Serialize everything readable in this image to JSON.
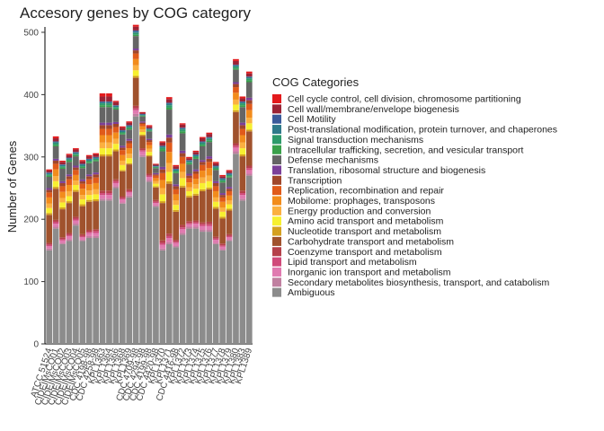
{
  "chart_data": {
    "type": "stacked_bar",
    "title": "Accesory genes by COG category",
    "y_label": "Number of Genes",
    "legend_title": "COG Categories",
    "ylim": [
      0,
      505
    ],
    "yticks": [
      0,
      100,
      200,
      300,
      400,
      500
    ],
    "categories": [
      "ATCC 51524",
      "CIDEIMsCO01",
      "CIDEIMsCO02",
      "CIDEIMsCO03",
      "CIDEIMsCO04",
      "CIDEIMsCO05",
      "CDC 4198-98",
      "CDC 4258-98",
      "KPL1363",
      "KPL1364",
      "KPL1366",
      "KPL1368",
      "KPL1369",
      "CDC 4709-98",
      "CDC 4294-98",
      "CDC 4199-98",
      "CDC 4420-98",
      "KPL1370",
      "KPL1371",
      "CDC 4416-98",
      "KPL1372",
      "KPL1373",
      "KPL1374",
      "KPL1375",
      "KPL1376",
      "KPL1377",
      "KPL1378",
      "KPL1379",
      "KPL1380",
      "KPL1383",
      "KPL1389"
    ],
    "series": [
      {
        "name": "Cell cycle control, cell division, chromosome partitioning",
        "color": "#e31a1c",
        "values": [
          2,
          3,
          2,
          2,
          2,
          2,
          2,
          2,
          5,
          5,
          2,
          2,
          2,
          3,
          1,
          2,
          1,
          2,
          3,
          2,
          2,
          2,
          2,
          2,
          2,
          2,
          2,
          2,
          3,
          3,
          3
        ]
      },
      {
        "name": "Cell wall/membrane/envelope biogenesis",
        "color": "#9b2335",
        "values": [
          3,
          5,
          4,
          4,
          4,
          4,
          4,
          4,
          8,
          8,
          5,
          4,
          4,
          6,
          2,
          3,
          2,
          5,
          6,
          4,
          5,
          3,
          4,
          5,
          5,
          4,
          3,
          3,
          6,
          5,
          5
        ]
      },
      {
        "name": "Cell Motility",
        "color": "#3a5a9a",
        "values": [
          1,
          1,
          1,
          1,
          1,
          1,
          1,
          1,
          1,
          1,
          1,
          1,
          1,
          2,
          1,
          1,
          1,
          1,
          1,
          1,
          1,
          1,
          1,
          1,
          1,
          1,
          1,
          1,
          1,
          1,
          1
        ]
      },
      {
        "name": "Post-translational modification, protein turnover, and chaperones",
        "color": "#2f7a8a",
        "values": [
          2,
          2,
          2,
          2,
          2,
          2,
          2,
          2,
          2,
          2,
          2,
          2,
          2,
          2,
          1,
          1,
          1,
          2,
          3,
          2,
          2,
          2,
          2,
          2,
          2,
          2,
          2,
          2,
          2,
          2,
          2
        ]
      },
      {
        "name": "Signal transduction mechanisms",
        "color": "#2e9a6a",
        "values": [
          2,
          3,
          2,
          2,
          2,
          2,
          2,
          2,
          3,
          3,
          2,
          2,
          2,
          3,
          1,
          2,
          1,
          3,
          4,
          2,
          3,
          2,
          2,
          3,
          3,
          2,
          2,
          2,
          3,
          3,
          3
        ]
      },
      {
        "name": "Intracellular trafficking, secretion, and vesicular transport",
        "color": "#3aa04a",
        "values": [
          2,
          2,
          2,
          2,
          2,
          2,
          2,
          2,
          3,
          3,
          2,
          2,
          2,
          2,
          1,
          1,
          1,
          3,
          3,
          2,
          3,
          2,
          2,
          2,
          2,
          2,
          2,
          2,
          2,
          3,
          3
        ]
      },
      {
        "name": "Defense mechanisms",
        "color": "#656565",
        "values": [
          18,
          20,
          20,
          20,
          15,
          18,
          18,
          18,
          25,
          25,
          20,
          18,
          15,
          20,
          8,
          12,
          8,
          25,
          40,
          18,
          28,
          15,
          17,
          22,
          23,
          18,
          17,
          15,
          20,
          25,
          25
        ]
      },
      {
        "name": "Translation, ribosomal structure and biogenesis",
        "color": "#7b3f99",
        "values": [
          3,
          3,
          3,
          3,
          3,
          3,
          3,
          3,
          4,
          4,
          3,
          3,
          3,
          3,
          2,
          2,
          2,
          4,
          5,
          3,
          4,
          3,
          3,
          3,
          4,
          3,
          3,
          3,
          3,
          4,
          4
        ]
      },
      {
        "name": "Transcription",
        "color": "#a0462a",
        "values": [
          4,
          5,
          5,
          5,
          4,
          4,
          5,
          5,
          6,
          6,
          5,
          4,
          4,
          5,
          2,
          3,
          2,
          6,
          8,
          5,
          6,
          4,
          4,
          5,
          5,
          5,
          4,
          4,
          5,
          6,
          6
        ]
      },
      {
        "name": "Replication, recombination and repair",
        "color": "#e05a1a",
        "values": [
          8,
          9,
          9,
          9,
          8,
          8,
          8,
          9,
          10,
          10,
          9,
          8,
          8,
          9,
          4,
          5,
          4,
          11,
          15,
          8,
          11,
          7,
          8,
          9,
          10,
          8,
          7,
          7,
          9,
          10,
          10
        ]
      },
      {
        "name": "Mobilome: prophages, transposons",
        "color": "#f28c1c",
        "values": [
          10,
          11,
          10,
          10,
          9,
          10,
          10,
          10,
          12,
          12,
          10,
          9,
          9,
          10,
          5,
          6,
          5,
          13,
          18,
          10,
          13,
          8,
          9,
          11,
          12,
          10,
          9,
          8,
          11,
          12,
          12
        ]
      },
      {
        "name": "Energy production and conversion",
        "color": "#fbb040",
        "values": [
          7,
          8,
          7,
          8,
          7,
          7,
          7,
          8,
          9,
          9,
          8,
          7,
          7,
          8,
          4,
          5,
          4,
          10,
          14,
          7,
          10,
          6,
          7,
          9,
          9,
          7,
          7,
          6,
          8,
          9,
          9
        ]
      },
      {
        "name": "Amino acid transport and metabolism",
        "color": "#f7f030",
        "values": [
          8,
          9,
          8,
          8,
          8,
          8,
          8,
          8,
          10,
          10,
          9,
          8,
          8,
          9,
          4,
          5,
          4,
          11,
          15,
          8,
          12,
          7,
          8,
          10,
          10,
          8,
          8,
          7,
          9,
          10,
          10
        ]
      },
      {
        "name": "Nucleotide transport and metabolism",
        "color": "#d4a020",
        "values": [
          3,
          3,
          3,
          3,
          3,
          3,
          3,
          3,
          3,
          3,
          3,
          2,
          2,
          3,
          2,
          2,
          2,
          3,
          4,
          3,
          3,
          3,
          3,
          3,
          3,
          3,
          3,
          3,
          3,
          3,
          3
        ]
      },
      {
        "name": "Carbohydrate transport and metabolism",
        "color": "#a0522d",
        "values": [
          45,
          50,
          45,
          48,
          40,
          45,
          45,
          45,
          55,
          55,
          45,
          40,
          40,
          45,
          20,
          28,
          20,
          60,
          80,
          45,
          60,
          38,
          40,
          50,
          52,
          45,
          40,
          38,
          50,
          55,
          55
        ]
      },
      {
        "name": "Coenzyme transport and metabolism",
        "color": "#b5404a",
        "values": [
          3,
          3,
          3,
          3,
          3,
          3,
          3,
          3,
          4,
          4,
          3,
          3,
          3,
          4,
          3,
          3,
          3,
          4,
          4,
          3,
          4,
          3,
          3,
          3,
          4,
          3,
          3,
          3,
          4,
          4,
          4
        ]
      },
      {
        "name": "Lipid transport and metabolism",
        "color": "#d04a7a",
        "values": [
          2,
          3,
          2,
          2,
          3,
          2,
          2,
          3,
          3,
          3,
          3,
          2,
          2,
          3,
          2,
          2,
          2,
          3,
          3,
          2,
          3,
          2,
          2,
          3,
          3,
          2,
          2,
          2,
          3,
          3,
          3
        ]
      },
      {
        "name": "Inorganic ion transport and metabolism",
        "color": "#e07ab0",
        "values": [
          4,
          5,
          4,
          5,
          5,
          4,
          5,
          5,
          6,
          6,
          5,
          5,
          5,
          6,
          6,
          5,
          4,
          6,
          7,
          5,
          6,
          4,
          5,
          6,
          6,
          5,
          4,
          4,
          6,
          6,
          6
        ]
      },
      {
        "name": "Secondary metabolites biosynthesis, transport, and catabolism",
        "color": "#c080a0",
        "values": [
          3,
          3,
          2,
          3,
          3,
          2,
          3,
          3,
          3,
          3,
          3,
          2,
          3,
          4,
          3,
          3,
          2,
          3,
          3,
          2,
          3,
          3,
          3,
          3,
          3,
          2,
          2,
          2,
          4,
          3,
          3
        ]
      },
      {
        "name": "Ambiguous",
        "color": "#8c8c8c",
        "values": [
          150,
          185,
          160,
          165,
          190,
          165,
          170,
          170,
          230,
          230,
          250,
          225,
          235,
          365,
          300,
          260,
          220,
          150,
          160,
          155,
          175,
          185,
          185,
          180,
          180,
          160,
          150,
          165,
          305,
          230,
          270
        ]
      }
    ]
  }
}
